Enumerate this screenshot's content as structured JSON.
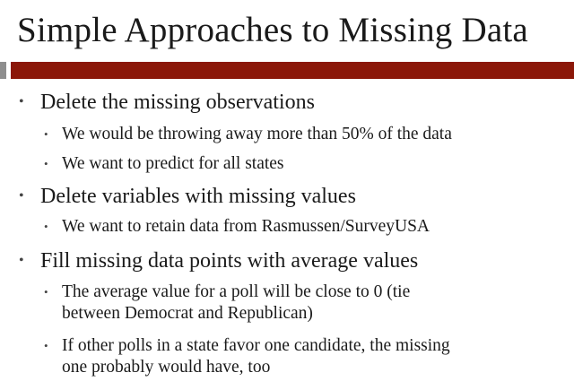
{
  "slide": {
    "title": "Simple Approaches to Missing Data",
    "bullet_glyph": "•",
    "points": [
      {
        "text": "Delete the missing observations",
        "sub": [
          {
            "lines": [
              "We would be throwing away more than 50% of the data"
            ]
          },
          {
            "lines": [
              "We want to predict for all states"
            ]
          }
        ]
      },
      {
        "text": "Delete variables with missing values",
        "sub": [
          {
            "lines": [
              "We want to retain data from Rasmussen/SurveyUSA"
            ]
          }
        ]
      },
      {
        "text": "Fill missing data points with average values",
        "sub": [
          {
            "lines": [
              "The average value for a poll will be close to 0 (tie",
              "between Democrat and Republican)"
            ]
          },
          {
            "lines": [
              "If other polls in a state favor one candidate, the missing",
              "one probably would have, too"
            ]
          }
        ]
      }
    ]
  },
  "colors": {
    "accent_bar": "#8b1709",
    "accent_bar_left": "#8e8e8e",
    "text": "#1a1a1a"
  }
}
